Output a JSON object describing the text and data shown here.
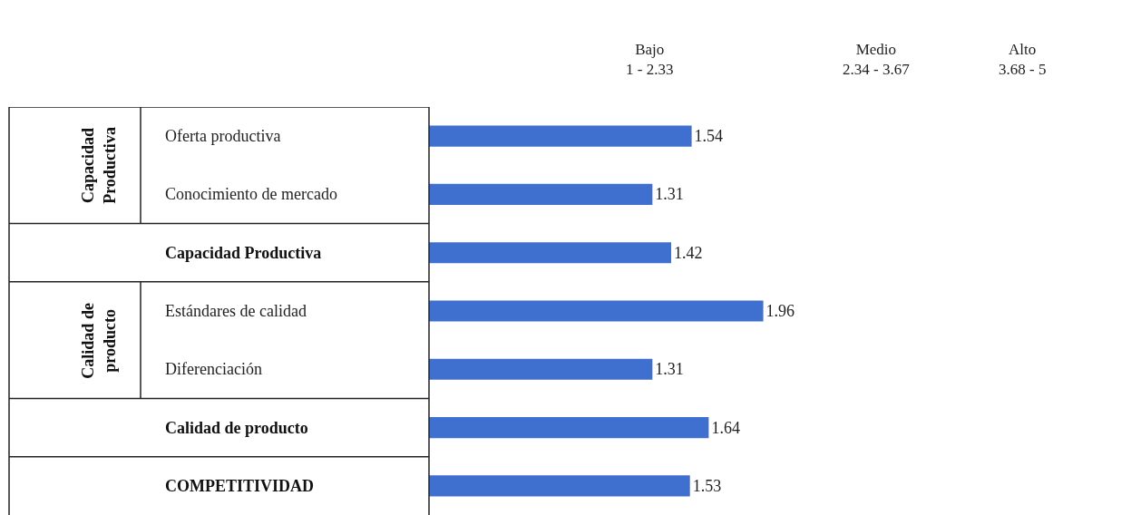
{
  "chart_data": {
    "type": "bar",
    "orientation": "horizontal",
    "categories": [
      "Oferta productiva",
      "Conocimiento de mercado",
      "Capacidad Productiva",
      "Estándares de calidad",
      "Diferenciación",
      "Calidad de producto",
      "COMPETITIVIDAD"
    ],
    "values": [
      1.54,
      1.31,
      1.42,
      1.96,
      1.31,
      1.64,
      1.53
    ],
    "color": "#3f6fcf",
    "data_labels": true,
    "annotations": [
      "Capacidad Productiva",
      "Calidad de producto",
      "Bajo\n1 - 2.33",
      "Medio\n2.34 - 3.67",
      "Alto\n3.68 - 5"
    ]
  }
}
